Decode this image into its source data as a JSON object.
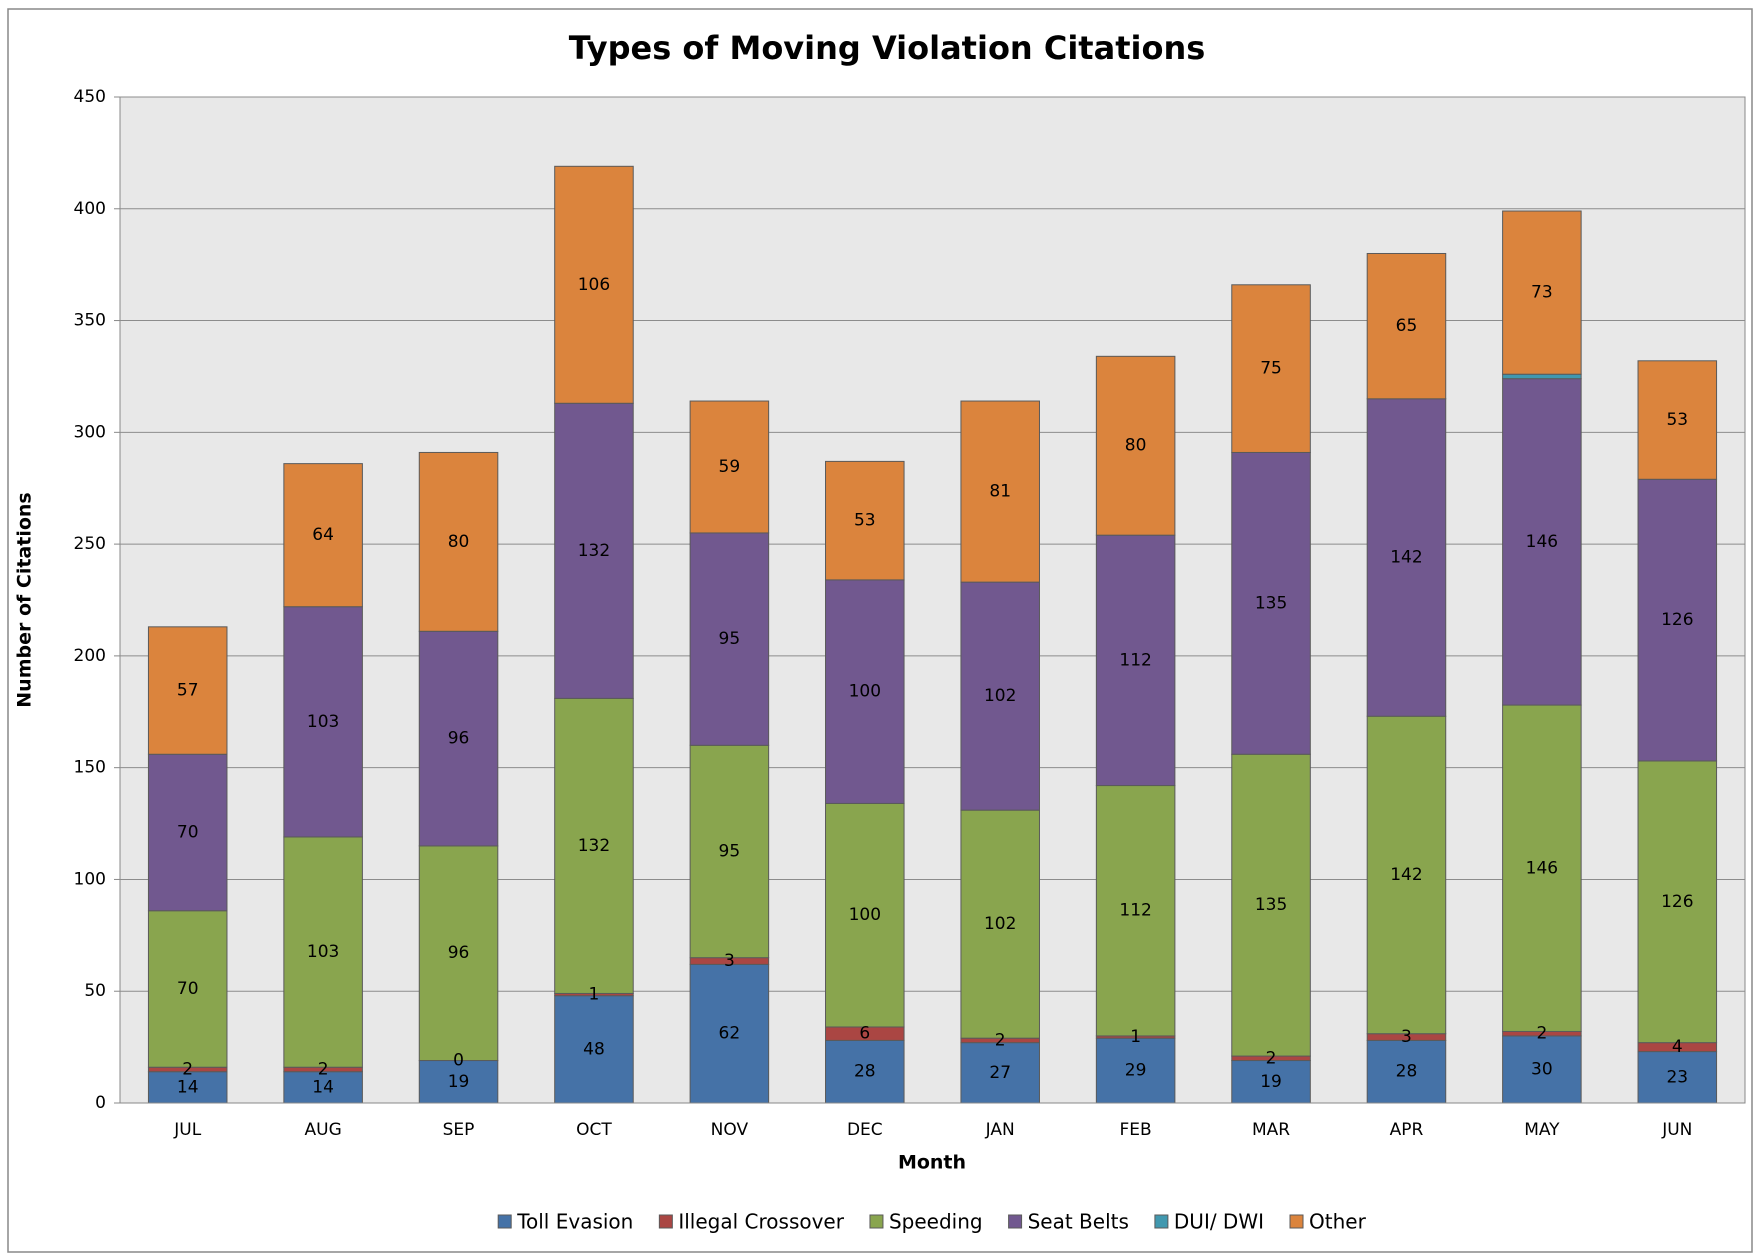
{
  "chart_data": {
    "type": "stacked_bar",
    "title": "Types of Moving Violation Citations",
    "x_label": "Month",
    "y_label": "Number of Citations",
    "categories": [
      "JUL",
      "AUG",
      "SEP",
      "OCT",
      "NOV",
      "DEC",
      "JAN",
      "FEB",
      "MAR",
      "APR",
      "MAY",
      "JUN"
    ],
    "series": [
      {
        "name": "Toll Evasion",
        "color": "#4572a7",
        "data_labels": true,
        "values": [
          14,
          14,
          19,
          48,
          62,
          28,
          27,
          29,
          19,
          28,
          30,
          23
        ]
      },
      {
        "name": "Illegal Crossover",
        "color": "#aa4643",
        "data_labels": true,
        "values": [
          2,
          2,
          0,
          1,
          3,
          6,
          2,
          1,
          2,
          3,
          2,
          4
        ]
      },
      {
        "name": "Speeding",
        "color": "#89a54e",
        "data_labels": true,
        "values": [
          70,
          103,
          96,
          132,
          95,
          100,
          102,
          112,
          135,
          142,
          146,
          126
        ]
      },
      {
        "name": "Seat Belts",
        "color": "#71588f",
        "data_labels": true,
        "values": [
          70,
          103,
          96,
          132,
          95,
          100,
          102,
          112,
          135,
          142,
          146,
          126
        ]
      },
      {
        "name": "DUI/ DWI",
        "color": "#4198af",
        "data_labels": false,
        "values": [
          0,
          0,
          0,
          0,
          0,
          0,
          0,
          0,
          0,
          0,
          2,
          0
        ]
      },
      {
        "name": "Other",
        "color": "#db843d",
        "data_labels": true,
        "values": [
          57,
          64,
          80,
          106,
          59,
          53,
          81,
          80,
          75,
          65,
          73,
          53
        ]
      }
    ],
    "ylim": [
      0,
      450
    ],
    "yticks": [
      0,
      50,
      100,
      150,
      200,
      250,
      300,
      350,
      400,
      450
    ],
    "grid": true,
    "legend": "bottom"
  }
}
